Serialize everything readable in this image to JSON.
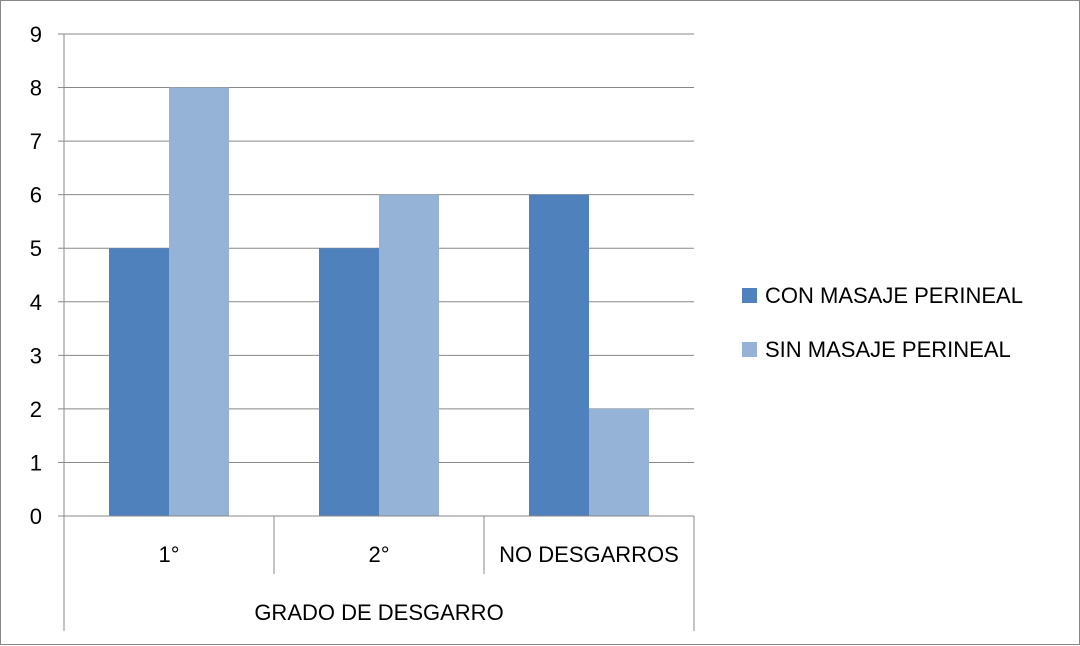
{
  "chart_data": {
    "type": "bar",
    "categories": [
      "1°",
      "2°",
      "NO DESGARROS"
    ],
    "series": [
      {
        "name": "CON MASAJE PERINEAL",
        "values": [
          5,
          5,
          6
        ],
        "color": "#4f81bd"
      },
      {
        "name": "SIN MASAJE PERINEAL",
        "values": [
          8,
          6,
          2
        ],
        "color": "#95b3d7"
      }
    ],
    "xlabel": "GRADO DE DESGARRO",
    "ylabel": "",
    "ylim": [
      0,
      9
    ],
    "yticks": [
      "0",
      "1",
      "2",
      "3",
      "4",
      "5",
      "6",
      "7",
      "8",
      "9"
    ],
    "grid": true,
    "legend_position": "right"
  }
}
